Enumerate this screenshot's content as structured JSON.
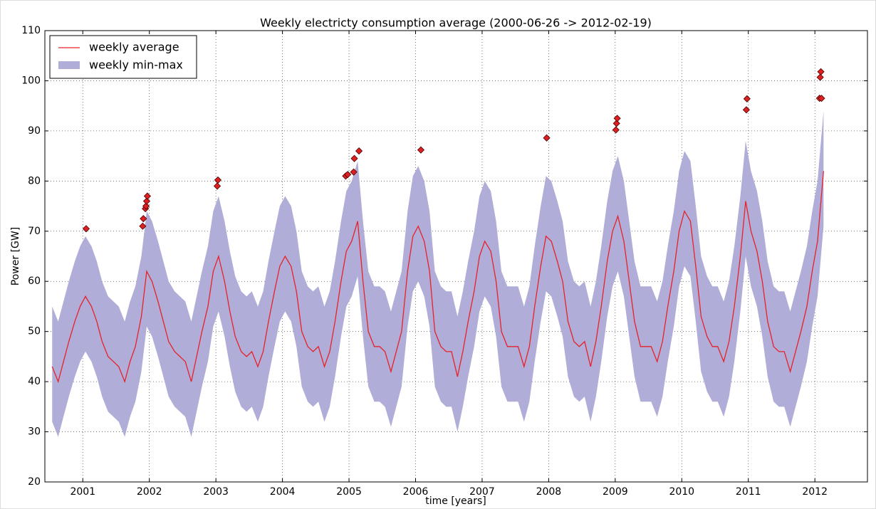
{
  "chart_data": {
    "type": "line",
    "title": "Weekly electricty consumption average (2000-06-26 -> 2012-02-19)",
    "xlabel": "time [years]",
    "ylabel": "Power [GW]",
    "xlim": [
      2000.43,
      2012.79
    ],
    "ylim": [
      20,
      110
    ],
    "xticks": [
      2001,
      2002,
      2003,
      2004,
      2005,
      2006,
      2007,
      2008,
      2009,
      2010,
      2011,
      2012
    ],
    "yticks": [
      20,
      30,
      40,
      50,
      60,
      70,
      80,
      90,
      100,
      110
    ],
    "grid": true,
    "legend": "upper left",
    "x": [
      2000.54,
      2000.63,
      2000.71,
      2000.79,
      2000.88,
      2000.96,
      2001.04,
      2001.13,
      2001.21,
      2001.29,
      2001.38,
      2001.46,
      2001.54,
      2001.63,
      2001.71,
      2001.79,
      2001.88,
      2001.96,
      2002.04,
      2002.13,
      2002.21,
      2002.29,
      2002.38,
      2002.46,
      2002.54,
      2002.63,
      2002.71,
      2002.79,
      2002.88,
      2002.96,
      2003.04,
      2003.13,
      2003.21,
      2003.29,
      2003.38,
      2003.46,
      2003.54,
      2003.63,
      2003.71,
      2003.79,
      2003.88,
      2003.96,
      2004.04,
      2004.13,
      2004.21,
      2004.29,
      2004.38,
      2004.46,
      2004.54,
      2004.63,
      2004.71,
      2004.79,
      2004.88,
      2004.96,
      2005.04,
      2005.13,
      2005.21,
      2005.29,
      2005.38,
      2005.46,
      2005.54,
      2005.63,
      2005.71,
      2005.79,
      2005.88,
      2005.96,
      2006.04,
      2006.13,
      2006.21,
      2006.29,
      2006.38,
      2006.46,
      2006.54,
      2006.63,
      2006.71,
      2006.79,
      2006.88,
      2006.96,
      2007.04,
      2007.13,
      2007.21,
      2007.29,
      2007.38,
      2007.46,
      2007.54,
      2007.63,
      2007.71,
      2007.79,
      2007.88,
      2007.96,
      2008.04,
      2008.13,
      2008.21,
      2008.29,
      2008.38,
      2008.46,
      2008.54,
      2008.63,
      2008.71,
      2008.79,
      2008.88,
      2008.96,
      2009.04,
      2009.13,
      2009.21,
      2009.29,
      2009.38,
      2009.46,
      2009.54,
      2009.63,
      2009.71,
      2009.79,
      2009.88,
      2009.96,
      2010.04,
      2010.13,
      2010.21,
      2010.29,
      2010.38,
      2010.46,
      2010.54,
      2010.63,
      2010.71,
      2010.79,
      2010.88,
      2010.96,
      2011.04,
      2011.13,
      2011.21,
      2011.29,
      2011.38,
      2011.46,
      2011.54,
      2011.63,
      2011.71,
      2011.79,
      2011.88,
      2011.96,
      2012.04,
      2012.13
    ],
    "series": [
      {
        "name": "weekly average",
        "color": "#e8202a",
        "values": [
          43,
          40,
          44,
          48,
          52,
          55,
          57,
          55,
          52,
          48,
          45,
          44,
          43,
          40,
          44,
          47,
          53,
          62,
          60,
          56,
          52,
          48,
          46,
          45,
          44,
          40,
          45,
          50,
          55,
          62,
          65,
          60,
          54,
          49,
          46,
          45,
          46,
          43,
          46,
          52,
          58,
          63,
          65,
          63,
          58,
          50,
          47,
          46,
          47,
          43,
          46,
          52,
          60,
          66,
          68,
          72,
          60,
          50,
          47,
          47,
          46,
          42,
          46,
          50,
          62,
          69,
          71,
          68,
          62,
          50,
          47,
          46,
          46,
          41,
          46,
          52,
          58,
          65,
          68,
          66,
          60,
          50,
          47,
          47,
          47,
          43,
          47,
          55,
          63,
          69,
          68,
          64,
          60,
          52,
          48,
          47,
          48,
          43,
          48,
          55,
          64,
          70,
          73,
          68,
          60,
          52,
          47,
          47,
          47,
          44,
          48,
          55,
          62,
          70,
          74,
          72,
          63,
          53,
          49,
          47,
          47,
          44,
          48,
          55,
          65,
          76,
          70,
          66,
          60,
          52,
          47,
          46,
          46,
          42,
          46,
          50,
          55,
          62,
          68,
          82
        ]
      },
      {
        "name": "weekly min-max",
        "color": "#b0aed8",
        "low": [
          32,
          29,
          33,
          37,
          41,
          44,
          46,
          44,
          41,
          37,
          34,
          33,
          32,
          29,
          33,
          36,
          42,
          51,
          49,
          45,
          41,
          37,
          35,
          34,
          33,
          29,
          34,
          39,
          44,
          51,
          54,
          49,
          43,
          38,
          35,
          34,
          35,
          32,
          35,
          41,
          47,
          52,
          54,
          52,
          47,
          39,
          36,
          35,
          36,
          32,
          35,
          41,
          49,
          55,
          57,
          61,
          49,
          39,
          36,
          36,
          35,
          31,
          35,
          39,
          51,
          58,
          60,
          57,
          51,
          39,
          36,
          35,
          35,
          30,
          35,
          41,
          47,
          54,
          57,
          55,
          49,
          39,
          36,
          36,
          36,
          32,
          36,
          44,
          52,
          58,
          57,
          53,
          49,
          41,
          37,
          36,
          37,
          32,
          37,
          44,
          53,
          59,
          62,
          57,
          49,
          41,
          36,
          36,
          36,
          33,
          37,
          44,
          51,
          59,
          63,
          61,
          52,
          42,
          38,
          36,
          36,
          33,
          37,
          44,
          54,
          65,
          59,
          55,
          49,
          41,
          36,
          35,
          35,
          31,
          35,
          39,
          44,
          51,
          57,
          71
        ],
        "high": [
          55,
          52,
          56,
          60,
          64,
          67,
          69,
          67,
          64,
          60,
          57,
          56,
          55,
          52,
          56,
          59,
          65,
          74,
          72,
          68,
          64,
          60,
          58,
          57,
          56,
          52,
          57,
          62,
          67,
          74,
          77,
          72,
          66,
          61,
          58,
          57,
          58,
          55,
          58,
          64,
          70,
          75,
          77,
          75,
          70,
          62,
          59,
          58,
          59,
          55,
          58,
          64,
          72,
          78,
          80,
          84,
          72,
          62,
          59,
          59,
          58,
          54,
          58,
          62,
          74,
          81,
          83,
          80,
          74,
          62,
          59,
          58,
          58,
          53,
          58,
          64,
          70,
          77,
          80,
          78,
          72,
          62,
          59,
          59,
          59,
          55,
          59,
          67,
          75,
          81,
          80,
          76,
          72,
          64,
          60,
          59,
          60,
          55,
          60,
          67,
          76,
          82,
          85,
          80,
          72,
          64,
          59,
          59,
          59,
          56,
          60,
          67,
          74,
          82,
          86,
          84,
          75,
          65,
          61,
          59,
          59,
          56,
          60,
          67,
          77,
          88,
          82,
          78,
          72,
          64,
          59,
          58,
          58,
          54,
          58,
          62,
          67,
          74,
          80,
          94
        ]
      }
    ],
    "markers": {
      "color": "#e02020",
      "x": [
        2001.05,
        2001.9,
        2001.91,
        2001.94,
        2001.95,
        2001.96,
        2001.97,
        2003.02,
        2003.03,
        2004.95,
        2004.98,
        2005.07,
        2005.08,
        2005.15,
        2006.08,
        2007.97,
        2009.01,
        2009.02,
        2009.03,
        2010.97,
        2010.98,
        2012.07,
        2012.08,
        2012.09,
        2012.1
      ],
      "values": [
        70.5,
        71,
        72.5,
        74.5,
        75,
        76,
        77,
        79,
        80.2,
        81,
        81.3,
        81.8,
        84.5,
        86,
        86.2,
        88.6,
        90.2,
        91.5,
        92.5,
        94.2,
        96.4,
        96.5,
        100.7,
        101.8,
        96.5
      ]
    }
  }
}
